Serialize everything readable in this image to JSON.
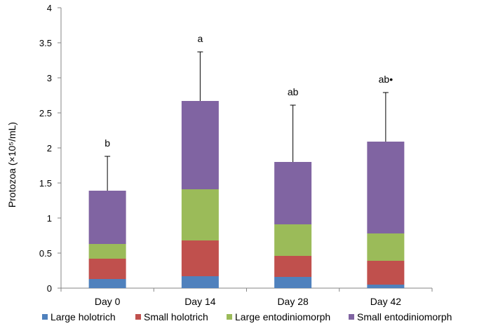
{
  "chart_data": {
    "type": "bar",
    "stacked": true,
    "title": "",
    "xlabel": "",
    "ylabel": "Protozoa (×10⁵/mL)",
    "ylim": [
      0,
      4
    ],
    "yticks": [
      "0",
      "0.5",
      "1",
      "1.5",
      "2",
      "2.5",
      "3",
      "3.5",
      "4"
    ],
    "categories": [
      "Day 0",
      "Day 14",
      "Day 28",
      "Day 42"
    ],
    "series": [
      {
        "name": "Large holotrich",
        "color": "#4f81bd",
        "values": [
          0.13,
          0.17,
          0.16,
          0.05
        ]
      },
      {
        "name": "Small holotrich",
        "color": "#c0504d",
        "values": [
          0.29,
          0.51,
          0.3,
          0.34
        ]
      },
      {
        "name": "Large entodiniomorph",
        "color": "#9bbb59",
        "values": [
          0.21,
          0.73,
          0.45,
          0.39
        ]
      },
      {
        "name": "Small entodiniomorph",
        "color": "#8064a2",
        "values": [
          0.76,
          1.26,
          0.89,
          1.31
        ]
      }
    ],
    "error_upper": [
      1.88,
      3.37,
      2.61,
      2.79
    ],
    "annotations": [
      "b",
      "a",
      "ab",
      "ab•"
    ],
    "grid": false,
    "legend_position": "bottom"
  }
}
